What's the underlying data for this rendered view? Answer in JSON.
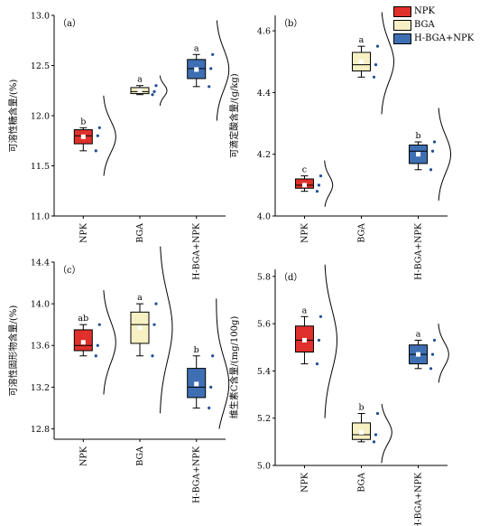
{
  "legend": {
    "items": [
      {
        "label": "NPK",
        "color": "#e0302b"
      },
      {
        "label": "BGA",
        "color": "#f6f0c3"
      },
      {
        "label": "H-BGA+NPK",
        "color": "#3e6fb3"
      }
    ]
  },
  "chart_data": [
    {
      "type": "box",
      "panel_label": "（a）",
      "ylabel": "可溶性糖含量/(%)",
      "ylim": [
        11.0,
        13.0
      ],
      "yticks": [
        "11.0",
        "11.5",
        "12.0",
        "12.5",
        "13.0"
      ],
      "categories": [
        "NPK",
        "BGA",
        "H-BGA+NPK"
      ],
      "boxes": [
        {
          "q1": 11.72,
          "median": 11.8,
          "q3": 11.86,
          "whisker_low": 11.65,
          "whisker_high": 11.88,
          "mean": 11.79,
          "letter": "b",
          "points": [
            11.88,
            11.8,
            11.65
          ],
          "density": [
            11.4,
            12.2
          ]
        },
        {
          "q1": 12.22,
          "median": 12.24,
          "q3": 12.28,
          "whisker_low": 12.21,
          "whisker_high": 12.3,
          "mean": 12.25,
          "letter": "a",
          "points": [
            12.3,
            12.24,
            12.21
          ],
          "density": [
            12.1,
            12.4
          ]
        },
        {
          "q1": 12.37,
          "median": 12.47,
          "q3": 12.56,
          "whisker_low": 12.29,
          "whisker_high": 12.61,
          "mean": 12.46,
          "letter": "a",
          "points": [
            12.61,
            12.47,
            12.29
          ],
          "density": [
            11.95,
            12.95
          ]
        }
      ]
    },
    {
      "type": "box",
      "panel_label": "（b）",
      "ylabel": "可滴定酸含量/(g/kg)",
      "ylim": [
        4.0,
        4.65
      ],
      "yticks": [
        "4.0",
        "4.2",
        "4.4",
        "4.6"
      ],
      "categories": [
        "NPK",
        "BGA",
        "H-BGA+NPK"
      ],
      "boxes": [
        {
          "q1": 4.09,
          "median": 4.1,
          "q3": 4.12,
          "whisker_low": 4.08,
          "whisker_high": 4.13,
          "mean": 4.1,
          "letter": "c",
          "points": [
            4.13,
            4.1,
            4.08
          ],
          "density": [
            4.03,
            4.18
          ]
        },
        {
          "q1": 4.47,
          "median": 4.49,
          "q3": 4.53,
          "whisker_low": 4.45,
          "whisker_high": 4.55,
          "mean": 4.5,
          "letter": "a",
          "points": [
            4.55,
            4.49,
            4.45
          ],
          "density": [
            4.33,
            4.66
          ]
        },
        {
          "q1": 4.17,
          "median": 4.21,
          "q3": 4.23,
          "whisker_low": 4.15,
          "whisker_high": 4.24,
          "mean": 4.2,
          "letter": "b",
          "points": [
            4.24,
            4.21,
            4.15
          ],
          "density": [
            4.05,
            4.35
          ]
        }
      ]
    },
    {
      "type": "box",
      "panel_label": "（c）",
      "ylabel": "可溶性固形物含量/(%)",
      "ylim": [
        12.7,
        14.4
      ],
      "yticks": [
        "12.8",
        "13.2",
        "13.6",
        "14.0",
        "14.4"
      ],
      "categories": [
        "NPK",
        "BGA",
        "H-BGA+NPK"
      ],
      "boxes": [
        {
          "q1": 13.55,
          "median": 13.6,
          "q3": 13.75,
          "whisker_low": 13.5,
          "whisker_high": 13.8,
          "mean": 13.63,
          "letter": "ab",
          "points": [
            13.8,
            13.6,
            13.5
          ],
          "density": [
            13.13,
            14.13
          ]
        },
        {
          "q1": 13.62,
          "median": 13.8,
          "q3": 13.92,
          "whisker_low": 13.5,
          "whisker_high": 14.0,
          "mean": 13.77,
          "letter": "a",
          "points": [
            14.0,
            13.8,
            13.5
          ],
          "density": [
            12.95,
            14.55
          ]
        },
        {
          "q1": 13.1,
          "median": 13.2,
          "q3": 13.38,
          "whisker_low": 13.0,
          "whisker_high": 13.5,
          "mean": 13.23,
          "letter": "b",
          "points": [
            13.5,
            13.2,
            13.0
          ],
          "density": [
            12.8,
            14.05
          ]
        }
      ]
    },
    {
      "type": "box",
      "panel_label": "（d）",
      "ylabel": "维生素C含量/(mg/100g)",
      "ylim": [
        5.0,
        5.83
      ],
      "yticks": [
        "5.0",
        "5.2",
        "5.4",
        "5.6",
        "5.8"
      ],
      "categories": [
        "NPK",
        "BGA",
        "H-BGA+NPK"
      ],
      "boxes": [
        {
          "q1": 5.48,
          "median": 5.53,
          "q3": 5.59,
          "whisker_low": 5.43,
          "whisker_high": 5.63,
          "mean": 5.53,
          "letter": "a",
          "points": [
            5.63,
            5.53,
            5.43
          ],
          "density": [
            5.2,
            5.85
          ]
        },
        {
          "q1": 5.11,
          "median": 5.13,
          "q3": 5.18,
          "whisker_low": 5.1,
          "whisker_high": 5.22,
          "mean": 5.14,
          "letter": "b",
          "points": [
            5.22,
            5.13,
            5.1
          ],
          "density": [
            5.01,
            5.26
          ]
        },
        {
          "q1": 5.43,
          "median": 5.47,
          "q3": 5.51,
          "whisker_low": 5.41,
          "whisker_high": 5.53,
          "mean": 5.47,
          "letter": "a",
          "points": [
            5.53,
            5.47,
            5.41
          ],
          "density": [
            5.35,
            5.6
          ]
        }
      ]
    }
  ]
}
